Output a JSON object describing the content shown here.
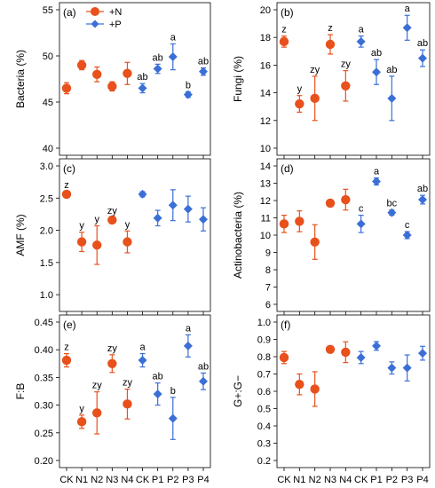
{
  "colors": {
    "N": "#e8501c",
    "P": "#3b6fd6"
  },
  "legend": [
    {
      "label": "+N",
      "series": "N",
      "marker": "circle"
    },
    {
      "label": "+P",
      "series": "P",
      "marker": "diamond"
    }
  ],
  "x_tick_labels": [
    "CK",
    "N1",
    "N2",
    "N3",
    "N4",
    "CK",
    "P1",
    "P2",
    "P3",
    "P4"
  ],
  "chart_data": [
    {
      "type": "scatter",
      "panel_label": "(a)",
      "ylabel": "Bacteria (%)",
      "ylim": [
        40,
        55
      ],
      "yticks": [
        40,
        45,
        50,
        55
      ],
      "ytick_labels": [
        "40",
        "45",
        "50",
        "55"
      ],
      "categories": [
        "CK",
        "N1",
        "N2",
        "N3",
        "N4",
        "CK",
        "P1",
        "P2",
        "P3",
        "P4"
      ],
      "series": [
        {
          "name": "+N",
          "key": "N",
          "marker": "circle",
          "points": [
            {
              "x": "CK",
              "y": 46.5,
              "err": 0.6,
              "label": ""
            },
            {
              "x": "N1",
              "y": 49.0,
              "err": 0.5,
              "label": ""
            },
            {
              "x": "N2",
              "y": 48.0,
              "err": 0.8,
              "label": ""
            },
            {
              "x": "N3",
              "y": 46.7,
              "err": 0.5,
              "label": ""
            },
            {
              "x": "N4",
              "y": 48.1,
              "err": 1.2,
              "label": ""
            }
          ]
        },
        {
          "name": "+P",
          "key": "P",
          "marker": "diamond",
          "points": [
            {
              "x": "CK",
              "y": 46.5,
              "err": 0.5,
              "label": "ab"
            },
            {
              "x": "P1",
              "y": 48.6,
              "err": 0.5,
              "label": "ab"
            },
            {
              "x": "P2",
              "y": 49.9,
              "err": 1.4,
              "label": "a"
            },
            {
              "x": "P3",
              "y": 45.8,
              "err": 0.3,
              "label": "b"
            },
            {
              "x": "P4",
              "y": 48.3,
              "err": 0.4,
              "label": "ab"
            }
          ]
        }
      ]
    },
    {
      "type": "scatter",
      "panel_label": "(b)",
      "ylabel": "Fungi (%)",
      "ylim": [
        10,
        20
      ],
      "yticks": [
        10,
        12,
        14,
        16,
        18,
        20
      ],
      "ytick_labels": [
        "10",
        "12",
        "14",
        "16",
        "18",
        "20"
      ],
      "categories": [
        "CK",
        "N1",
        "N2",
        "N3",
        "N4",
        "CK",
        "P1",
        "P2",
        "P3",
        "P4"
      ],
      "series": [
        {
          "name": "+N",
          "key": "N",
          "marker": "circle",
          "points": [
            {
              "x": "CK",
              "y": 17.7,
              "err": 0.4,
              "label": "z"
            },
            {
              "x": "N1",
              "y": 13.2,
              "err": 0.6,
              "label": "y"
            },
            {
              "x": "N2",
              "y": 13.6,
              "err": 1.6,
              "label": "zy"
            },
            {
              "x": "N3",
              "y": 17.5,
              "err": 0.7,
              "label": "z"
            },
            {
              "x": "N4",
              "y": 14.5,
              "err": 1.1,
              "label": "zy"
            }
          ]
        },
        {
          "name": "+P",
          "key": "P",
          "marker": "diamond",
          "points": [
            {
              "x": "CK",
              "y": 17.7,
              "err": 0.4,
              "label": "a"
            },
            {
              "x": "P1",
              "y": 15.5,
              "err": 0.9,
              "label": "ab"
            },
            {
              "x": "P2",
              "y": 13.6,
              "err": 1.6,
              "label": "ab"
            },
            {
              "x": "P3",
              "y": 18.7,
              "err": 0.9,
              "label": "a"
            },
            {
              "x": "P4",
              "y": 16.5,
              "err": 0.6,
              "label": "ab"
            }
          ]
        }
      ]
    },
    {
      "type": "scatter",
      "panel_label": "(c)",
      "ylabel": "AMF (%)",
      "ylim": [
        0.85,
        3.0
      ],
      "yticks": [
        1.0,
        1.5,
        2.0,
        2.5,
        3.0
      ],
      "ytick_labels": [
        "1.0",
        "1.5",
        "2.0",
        "2.5",
        "3.0"
      ],
      "categories": [
        "CK",
        "N1",
        "N2",
        "N3",
        "N4",
        "CK",
        "P1",
        "P2",
        "P3",
        "P4"
      ],
      "series": [
        {
          "name": "+N",
          "key": "N",
          "marker": "circle",
          "points": [
            {
              "x": "CK",
              "y": 2.56,
              "err": 0.04,
              "label": "z"
            },
            {
              "x": "N1",
              "y": 1.82,
              "err": 0.15,
              "label": "y"
            },
            {
              "x": "N2",
              "y": 1.77,
              "err": 0.3,
              "label": "y"
            },
            {
              "x": "N3",
              "y": 2.16,
              "err": 0.04,
              "label": "zy"
            },
            {
              "x": "N4",
              "y": 1.82,
              "err": 0.17,
              "label": "y"
            }
          ]
        },
        {
          "name": "+P",
          "key": "P",
          "marker": "diamond",
          "points": [
            {
              "x": "CK",
              "y": 2.56,
              "err": 0.04,
              "label": ""
            },
            {
              "x": "P1",
              "y": 2.19,
              "err": 0.12,
              "label": ""
            },
            {
              "x": "P2",
              "y": 2.39,
              "err": 0.24,
              "label": ""
            },
            {
              "x": "P3",
              "y": 2.33,
              "err": 0.2,
              "label": ""
            },
            {
              "x": "P4",
              "y": 2.17,
              "err": 0.18,
              "label": ""
            }
          ]
        }
      ]
    },
    {
      "type": "scatter",
      "panel_label": "(d)",
      "ylabel": "Actinobacteria (%)",
      "ylim": [
        6,
        14
      ],
      "yticks": [
        6,
        7,
        8,
        9,
        10,
        11,
        12,
        13,
        14
      ],
      "ytick_labels": [
        "6",
        "7",
        "8",
        "9",
        "10",
        "11",
        "12",
        "13",
        "14"
      ],
      "categories": [
        "CK",
        "N1",
        "N2",
        "N3",
        "N4",
        "CK",
        "P1",
        "P2",
        "P3",
        "P4"
      ],
      "series": [
        {
          "name": "+N",
          "key": "N",
          "marker": "circle",
          "points": [
            {
              "x": "CK",
              "y": 10.65,
              "err": 0.5,
              "label": ""
            },
            {
              "x": "N1",
              "y": 10.8,
              "err": 0.6,
              "label": ""
            },
            {
              "x": "N2",
              "y": 9.6,
              "err": 1.0,
              "label": ""
            },
            {
              "x": "N3",
              "y": 11.85,
              "err": 0.1,
              "label": ""
            },
            {
              "x": "N4",
              "y": 12.05,
              "err": 0.6,
              "label": ""
            }
          ]
        },
        {
          "name": "+P",
          "key": "P",
          "marker": "diamond",
          "points": [
            {
              "x": "CK",
              "y": 10.65,
              "err": 0.5,
              "label": "c"
            },
            {
              "x": "P1",
              "y": 13.1,
              "err": 0.2,
              "label": "a"
            },
            {
              "x": "P2",
              "y": 11.3,
              "err": 0.15,
              "label": "bc"
            },
            {
              "x": "P3",
              "y": 10.0,
              "err": 0.2,
              "label": "c"
            },
            {
              "x": "P4",
              "y": 12.05,
              "err": 0.25,
              "label": "ab"
            }
          ]
        }
      ]
    },
    {
      "type": "scatter",
      "panel_label": "(e)",
      "ylabel": "F:B",
      "ylim": [
        0.2,
        0.45
      ],
      "yticks": [
        0.2,
        0.25,
        0.3,
        0.35,
        0.4,
        0.45
      ],
      "ytick_labels": [
        "0.20",
        "0.25",
        "0.30",
        "0.35",
        "0.40",
        "0.45"
      ],
      "categories": [
        "CK",
        "N1",
        "N2",
        "N3",
        "N4",
        "CK",
        "P1",
        "P2",
        "P3",
        "P4"
      ],
      "series": [
        {
          "name": "+N",
          "key": "N",
          "marker": "circle",
          "points": [
            {
              "x": "CK",
              "y": 0.381,
              "err": 0.012,
              "label": "z"
            },
            {
              "x": "N1",
              "y": 0.27,
              "err": 0.012,
              "label": "y"
            },
            {
              "x": "N2",
              "y": 0.286,
              "err": 0.038,
              "label": "zy"
            },
            {
              "x": "N3",
              "y": 0.375,
              "err": 0.016,
              "label": "zy"
            },
            {
              "x": "N4",
              "y": 0.302,
              "err": 0.027,
              "label": "zy"
            }
          ]
        },
        {
          "name": "+P",
          "key": "P",
          "marker": "diamond",
          "points": [
            {
              "x": "CK",
              "y": 0.381,
              "err": 0.012,
              "label": "a"
            },
            {
              "x": "P1",
              "y": 0.32,
              "err": 0.02,
              "label": "ab"
            },
            {
              "x": "P2",
              "y": 0.276,
              "err": 0.038,
              "label": "b"
            },
            {
              "x": "P3",
              "y": 0.407,
              "err": 0.02,
              "label": "a"
            },
            {
              "x": "P4",
              "y": 0.343,
              "err": 0.015,
              "label": "ab"
            }
          ]
        }
      ]
    },
    {
      "type": "scatter",
      "panel_label": "(f)",
      "ylabel": "G+:G−",
      "ylim": [
        0.2,
        1.0
      ],
      "yticks": [
        0.2,
        0.3,
        0.4,
        0.5,
        0.6,
        0.7,
        0.8,
        0.9,
        1.0
      ],
      "ytick_labels": [
        "0.2",
        "0.3",
        "0.4",
        "0.5",
        "0.6",
        "0.7",
        "0.8",
        "0.9",
        "1.0"
      ],
      "categories": [
        "CK",
        "N1",
        "N2",
        "N3",
        "N4",
        "CK",
        "P1",
        "P2",
        "P3",
        "P4"
      ],
      "series": [
        {
          "name": "+N",
          "key": "N",
          "marker": "circle",
          "points": [
            {
              "x": "CK",
              "y": 0.795,
              "err": 0.035,
              "label": ""
            },
            {
              "x": "N1",
              "y": 0.64,
              "err": 0.06,
              "label": ""
            },
            {
              "x": "N2",
              "y": 0.613,
              "err": 0.1,
              "label": ""
            },
            {
              "x": "N3",
              "y": 0.842,
              "err": 0.012,
              "label": ""
            },
            {
              "x": "N4",
              "y": 0.826,
              "err": 0.06,
              "label": ""
            }
          ]
        },
        {
          "name": "+P",
          "key": "P",
          "marker": "diamond",
          "points": [
            {
              "x": "CK",
              "y": 0.795,
              "err": 0.035,
              "label": ""
            },
            {
              "x": "P1",
              "y": 0.862,
              "err": 0.025,
              "label": ""
            },
            {
              "x": "P2",
              "y": 0.735,
              "err": 0.035,
              "label": ""
            },
            {
              "x": "P3",
              "y": 0.735,
              "err": 0.075,
              "label": ""
            },
            {
              "x": "P4",
              "y": 0.82,
              "err": 0.04,
              "label": ""
            }
          ]
        }
      ]
    }
  ]
}
